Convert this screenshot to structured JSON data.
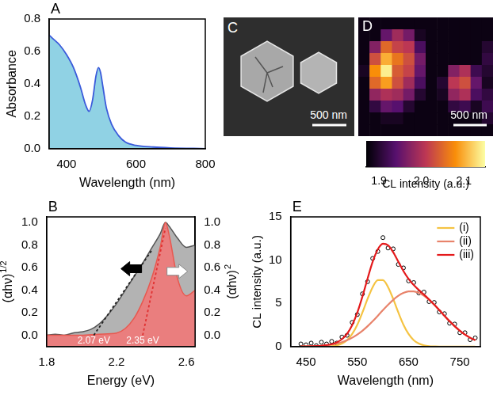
{
  "chart_data": [
    {
      "panel": "A",
      "type": "area",
      "x": [
        350,
        360,
        380,
        400,
        420,
        440,
        455,
        465,
        475,
        485,
        492,
        498,
        505,
        515,
        530,
        550,
        570,
        600,
        650,
        700,
        800
      ],
      "values": [
        0.7,
        0.68,
        0.64,
        0.58,
        0.5,
        0.38,
        0.27,
        0.23,
        0.3,
        0.45,
        0.5,
        0.47,
        0.38,
        0.25,
        0.15,
        0.08,
        0.04,
        0.02,
        0.01,
        0.005,
        0
      ],
      "color": "#3b5bdb",
      "xlim": [
        350,
        800
      ],
      "xticks": [
        400,
        600,
        800
      ],
      "ylim": [
        0,
        0.8
      ],
      "yticks": [
        {
          "value": 0,
          "label": "0.0"
        },
        0.2,
        0.4,
        0.6,
        0.8
      ],
      "x_label": "Wavelength (nm)",
      "y_label": "Absorbance"
    },
    {
      "panel": "B",
      "type": "area",
      "x_label": "Energy (eV)",
      "y_label": {
        "text": "(αhν)",
        "superscript": "1/2"
      },
      "y2_label": {
        "text": "(αhν)",
        "superscript": "2"
      },
      "xlim": [
        1.8,
        2.65
      ],
      "xticks": [
        1.8,
        2.2,
        2.6
      ],
      "ylim": [
        -0.1,
        1.05
      ],
      "yticks": [
        {
          "value": 0,
          "label": "0.0"
        },
        0.2,
        0.4,
        0.6,
        0.8,
        {
          "value": 1,
          "label": "1.0"
        }
      ],
      "y2lim": [
        -0.1,
        1.05
      ],
      "y2ticks": [
        {
          "value": 0,
          "label": "0.0"
        },
        0.2,
        0.4,
        0.6,
        0.8,
        {
          "value": 1,
          "label": "1.0"
        }
      ],
      "series": [
        {
          "axis": "y",
          "color": "#555555",
          "x": [
            1.8,
            1.85,
            1.9,
            1.95,
            2.0,
            2.05,
            2.1,
            2.15,
            2.2,
            2.25,
            2.3,
            2.35,
            2.4,
            2.45,
            2.48,
            2.5,
            2.55,
            2.6,
            2.65
          ],
          "values": [
            0,
            0.01,
            0,
            0.02,
            0.03,
            0.05,
            0.1,
            0.18,
            0.28,
            0.4,
            0.52,
            0.64,
            0.77,
            0.9,
            1.0,
            0.97,
            0.86,
            0.78,
            0.8
          ]
        },
        {
          "axis": "y2",
          "color": "#e8584f",
          "x": [
            1.8,
            1.9,
            2.0,
            2.1,
            2.2,
            2.25,
            2.3,
            2.35,
            2.4,
            2.45,
            2.48,
            2.5,
            2.55,
            2.6,
            2.65
          ],
          "values": [
            0,
            0,
            0,
            0.01,
            0.02,
            0.06,
            0.15,
            0.3,
            0.5,
            0.78,
            1.0,
            0.9,
            0.5,
            0.35,
            0.4
          ]
        },
        {
          "axis": "y",
          "type": "line",
          "line_style": "dotted",
          "color": "#222222",
          "x": [
            2.07,
            2.4
          ],
          "values": [
            0,
            0.75
          ]
        },
        {
          "axis": "y2",
          "type": "line",
          "line_style": "dotted",
          "color": "#e03030",
          "x": [
            2.35,
            2.48
          ],
          "values": [
            0,
            0.95
          ]
        }
      ],
      "annotations": [
        {
          "text": "2.07 eV",
          "x": 2.07
        },
        {
          "text": "2.35 eV",
          "x": 2.35
        }
      ]
    },
    {
      "panel": "C",
      "type": "image",
      "scale_bar": "500 nm"
    },
    {
      "panel": "D",
      "type": "heatmap",
      "scale_bar": "500 nm",
      "cells": [
        [
          1.88,
          1.88,
          1.88,
          1.88,
          1.88,
          1.88,
          1.88,
          1.88,
          1.88,
          1.88,
          1.88,
          1.88
        ],
        [
          1.88,
          1.88,
          1.95,
          1.99,
          1.96,
          1.89,
          1.88,
          1.88,
          1.88,
          1.88,
          1.88,
          1.88
        ],
        [
          1.88,
          1.97,
          2.05,
          2.02,
          2.01,
          1.93,
          1.88,
          1.88,
          1.88,
          1.88,
          1.88,
          1.9
        ],
        [
          1.88,
          2.03,
          2.1,
          2.06,
          2.03,
          1.96,
          1.88,
          1.88,
          1.88,
          1.88,
          1.88,
          1.91
        ],
        [
          1.89,
          2.08,
          2.14,
          2.04,
          2.02,
          1.95,
          1.88,
          1.88,
          1.97,
          2.0,
          1.92,
          1.9
        ],
        [
          1.88,
          2.05,
          2.09,
          2.03,
          1.99,
          1.93,
          1.88,
          1.9,
          2.01,
          2.03,
          1.95,
          1.89
        ],
        [
          1.88,
          1.98,
          2.0,
          1.99,
          1.96,
          1.9,
          1.88,
          1.89,
          1.98,
          2.0,
          1.93,
          1.91
        ],
        [
          1.88,
          1.91,
          1.95,
          1.94,
          1.9,
          1.88,
          1.88,
          1.88,
          1.91,
          1.92,
          1.89,
          1.92
        ],
        [
          1.88,
          1.88,
          1.89,
          1.89,
          1.88,
          1.88,
          1.88,
          1.88,
          1.88,
          1.88,
          1.88,
          1.9
        ],
        [
          1.88,
          1.88,
          1.88,
          1.88,
          1.88,
          1.88,
          1.88,
          1.88,
          1.88,
          1.88,
          1.88,
          1.88
        ]
      ],
      "colorbar": {
        "range": [
          1.87,
          2.15
        ],
        "ticks": [
          {
            "value": 1.9,
            "label": "1.9"
          },
          {
            "value": 2.0,
            "label": "2.0"
          },
          {
            "value": 2.1,
            "label": "2.1"
          }
        ],
        "label": "CL intensity (a.u.)"
      }
    },
    {
      "panel": "E",
      "type": "line",
      "x": [
        440,
        450,
        460,
        470,
        480,
        490,
        500,
        510,
        520,
        530,
        540,
        550,
        560,
        570,
        580,
        590,
        600,
        610,
        620,
        630,
        640,
        650,
        660,
        670,
        680,
        690,
        700,
        710,
        720,
        730,
        740,
        750,
        760,
        770,
        780
      ],
      "series": [
        {
          "type": "scatter",
          "marker": "circle",
          "color": "#000000",
          "values": [
            0.3,
            0.2,
            0.4,
            0.1,
            0.5,
            0.3,
            0.6,
            0.4,
            1.1,
            1.3,
            2.8,
            3.7,
            6.1,
            7.5,
            10.2,
            11.0,
            12.6,
            11.4,
            11.3,
            9.5,
            9.1,
            7.6,
            7.4,
            6.2,
            6.3,
            5.2,
            5.1,
            4.0,
            3.8,
            2.7,
            2.6,
            1.6,
            1.6,
            0.8,
            1.0
          ]
        },
        {
          "name": "(i)",
          "color": "#f5c342",
          "values": [
            0,
            0,
            0,
            0,
            0,
            0.02,
            0.05,
            0.14,
            0.34,
            0.74,
            1.45,
            2.53,
            3.95,
            5.51,
            6.88,
            7.69,
            7.69,
            6.88,
            5.51,
            3.95,
            2.53,
            1.45,
            0.74,
            0.34,
            0.14,
            0.05,
            0.02,
            0,
            0,
            0,
            0,
            0,
            0,
            0,
            0
          ]
        },
        {
          "name": "(ii)",
          "color": "#e8836b",
          "values": [
            0.01,
            0.02,
            0.03,
            0.06,
            0.09,
            0.15,
            0.23,
            0.35,
            0.51,
            0.73,
            1.02,
            1.39,
            1.83,
            2.35,
            2.93,
            3.56,
            4.21,
            4.83,
            5.4,
            5.87,
            6.2,
            6.38,
            6.38,
            6.2,
            5.87,
            5.4,
            4.83,
            4.21,
            3.56,
            2.93,
            2.35,
            1.83,
            1.39,
            1.02,
            0.73
          ]
        },
        {
          "name": "(iii)",
          "color": "#e41a1c",
          "values": [
            0.01,
            0.02,
            0.03,
            0.06,
            0.09,
            0.17,
            0.28,
            0.49,
            0.85,
            1.47,
            2.47,
            3.92,
            5.78,
            7.86,
            9.81,
            11.25,
            11.9,
            11.71,
            10.91,
            9.82,
            8.73,
            7.83,
            7.12,
            6.54,
            6.01,
            5.45,
            4.85,
            4.21,
            3.56,
            2.93,
            2.35,
            1.83,
            1.39,
            1.02,
            0.73
          ]
        }
      ],
      "xlim": [
        420,
        790
      ],
      "xticks": [
        450,
        550,
        650,
        750
      ],
      "ylim": [
        0,
        15
      ],
      "yticks": [
        0,
        5,
        10,
        15
      ],
      "legend": "upper right",
      "x_label": "Wavelength (nm)",
      "y_label": "CL intensity (a.u.)"
    }
  ]
}
